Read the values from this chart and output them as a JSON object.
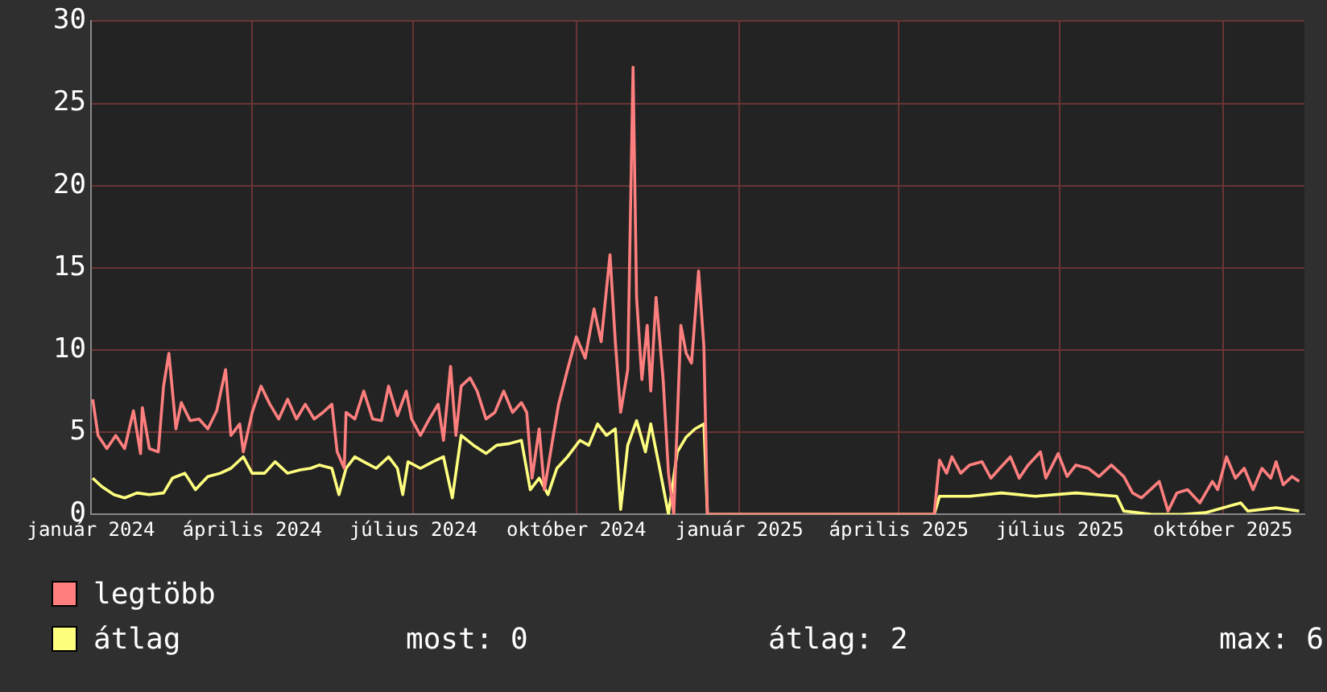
{
  "chart_data": {
    "type": "line",
    "xlim": [
      "2024-01-01",
      "2025-11-16"
    ],
    "ylim": [
      0,
      30
    ],
    "yticks": [
      0,
      5,
      10,
      15,
      20,
      25,
      30
    ],
    "xticks": [
      {
        "value": "2024-01-01",
        "label": "január 2024"
      },
      {
        "value": "2024-04-01",
        "label": "április 2024"
      },
      {
        "value": "2024-07-01",
        "label": "július 2024"
      },
      {
        "value": "2024-10-01",
        "label": "október 2024"
      },
      {
        "value": "2025-01-01",
        "label": "január 2025"
      },
      {
        "value": "2025-04-01",
        "label": "április 2025"
      },
      {
        "value": "2025-07-01",
        "label": "július 2025"
      },
      {
        "value": "2025-10-01",
        "label": "október 2025"
      }
    ],
    "grid": true,
    "legend": "bottom",
    "marker": "none",
    "line_style": "solid",
    "annotations": [
      "most: 0",
      "átlag: 2",
      "max: 6"
    ],
    "series": [
      {
        "name": "legtöbb",
        "color": "#ff7f7f",
        "x": [
          "2024-01-02",
          "2024-01-05",
          "2024-01-10",
          "2024-01-15",
          "2024-01-20",
          "2024-01-25",
          "2024-01-29",
          "2024-01-30",
          "2024-02-03",
          "2024-02-08",
          "2024-02-11",
          "2024-02-14",
          "2024-02-18",
          "2024-02-21",
          "2024-02-26",
          "2024-03-02",
          "2024-03-07",
          "2024-03-12",
          "2024-03-17",
          "2024-03-20",
          "2024-03-25",
          "2024-03-27",
          "2024-04-01",
          "2024-04-06",
          "2024-04-11",
          "2024-04-16",
          "2024-04-21",
          "2024-04-26",
          "2024-05-01",
          "2024-05-06",
          "2024-05-11",
          "2024-05-16",
          "2024-05-19",
          "2024-05-23",
          "2024-05-24",
          "2024-05-29",
          "2024-06-03",
          "2024-06-08",
          "2024-06-13",
          "2024-06-17",
          "2024-06-22",
          "2024-06-27",
          "2024-06-30",
          "2024-07-05",
          "2024-07-10",
          "2024-07-15",
          "2024-07-18",
          "2024-07-22",
          "2024-07-25",
          "2024-07-28",
          "2024-08-02",
          "2024-08-06",
          "2024-08-11",
          "2024-08-16",
          "2024-08-21",
          "2024-08-26",
          "2024-08-31",
          "2024-09-03",
          "2024-09-06",
          "2024-09-10",
          "2024-09-13",
          "2024-09-18",
          "2024-09-21",
          "2024-09-26",
          "2024-10-01",
          "2024-10-06",
          "2024-10-11",
          "2024-10-15",
          "2024-10-20",
          "2024-10-23",
          "2024-10-26",
          "2024-10-30",
          "2024-11-02",
          "2024-11-04",
          "2024-11-07",
          "2024-11-10",
          "2024-11-12",
          "2024-11-15",
          "2024-11-19",
          "2024-11-22",
          "2024-11-25",
          "2024-11-29",
          "2024-12-02",
          "2024-12-05",
          "2024-12-09",
          "2024-12-12",
          "2024-12-14",
          "2025-04-21",
          "2025-04-24",
          "2025-04-28",
          "2025-05-01",
          "2025-05-06",
          "2025-05-11",
          "2025-05-18",
          "2025-05-23",
          "2025-05-28",
          "2025-06-03",
          "2025-06-08",
          "2025-06-13",
          "2025-06-20",
          "2025-06-23",
          "2025-06-30",
          "2025-07-05",
          "2025-07-10",
          "2025-07-17",
          "2025-07-23",
          "2025-07-30",
          "2025-08-06",
          "2025-08-11",
          "2025-08-16",
          "2025-08-21",
          "2025-08-26",
          "2025-08-31",
          "2025-09-05",
          "2025-09-11",
          "2025-09-18",
          "2025-09-25",
          "2025-09-28",
          "2025-10-03",
          "2025-10-08",
          "2025-10-13",
          "2025-10-18",
          "2025-10-23",
          "2025-10-28",
          "2025-10-31",
          "2025-11-04",
          "2025-11-09",
          "2025-11-13"
        ],
        "values": [
          7.0,
          4.8,
          4.0,
          4.8,
          4.0,
          6.3,
          3.7,
          6.5,
          4.0,
          3.8,
          7.8,
          9.8,
          5.2,
          6.8,
          5.7,
          5.8,
          5.2,
          6.3,
          8.8,
          4.8,
          5.5,
          3.8,
          6.2,
          7.8,
          6.7,
          5.8,
          7.0,
          5.8,
          6.7,
          5.8,
          6.2,
          6.7,
          3.8,
          2.8,
          6.2,
          5.8,
          7.5,
          5.8,
          5.7,
          7.8,
          6.0,
          7.5,
          5.8,
          4.8,
          5.8,
          6.7,
          4.5,
          9.0,
          4.8,
          7.8,
          8.3,
          7.5,
          5.8,
          6.2,
          7.5,
          6.2,
          6.8,
          6.2,
          2.2,
          5.2,
          1.5,
          4.8,
          6.7,
          8.8,
          10.8,
          9.5,
          12.5,
          10.5,
          15.8,
          10.5,
          6.2,
          8.8,
          27.2,
          13.2,
          8.2,
          11.5,
          7.5,
          13.2,
          8.2,
          2.5,
          0,
          11.5,
          9.8,
          9.2,
          14.8,
          10.2,
          0,
          0,
          3.3,
          2.5,
          3.5,
          2.5,
          3.0,
          3.2,
          2.2,
          2.8,
          3.5,
          2.2,
          3.0,
          3.8,
          2.2,
          3.7,
          2.3,
          3.0,
          2.8,
          2.3,
          3.0,
          2.3,
          1.3,
          1.0,
          1.5,
          2.0,
          0.2,
          1.3,
          1.5,
          0.7,
          2.0,
          1.5,
          3.5,
          2.2,
          2.8,
          1.5,
          2.8,
          2.2,
          3.2,
          1.8,
          2.3,
          2.0
        ]
      },
      {
        "name": "átlag",
        "color": "#ffff7f",
        "x": [
          "2024-01-02",
          "2024-01-07",
          "2024-01-14",
          "2024-01-20",
          "2024-01-27",
          "2024-02-03",
          "2024-02-11",
          "2024-02-16",
          "2024-02-23",
          "2024-02-29",
          "2024-03-07",
          "2024-03-14",
          "2024-03-20",
          "2024-03-27",
          "2024-04-01",
          "2024-04-08",
          "2024-04-14",
          "2024-04-21",
          "2024-04-28",
          "2024-05-04",
          "2024-05-09",
          "2024-05-16",
          "2024-05-20",
          "2024-05-24",
          "2024-05-29",
          "2024-06-03",
          "2024-06-10",
          "2024-06-17",
          "2024-06-22",
          "2024-06-25",
          "2024-06-28",
          "2024-07-05",
          "2024-07-12",
          "2024-07-18",
          "2024-07-23",
          "2024-07-28",
          "2024-08-04",
          "2024-08-11",
          "2024-08-17",
          "2024-08-24",
          "2024-08-31",
          "2024-09-05",
          "2024-09-10",
          "2024-09-15",
          "2024-09-20",
          "2024-09-26",
          "2024-10-03",
          "2024-10-08",
          "2024-10-13",
          "2024-10-18",
          "2024-10-23",
          "2024-10-26",
          "2024-10-30",
          "2024-11-04",
          "2024-11-09",
          "2024-11-12",
          "2024-11-17",
          "2024-11-22",
          "2024-11-27",
          "2024-12-02",
          "2024-12-07",
          "2024-12-12",
          "2024-12-14",
          "2025-04-21",
          "2025-04-24",
          "2025-05-11",
          "2025-05-29",
          "2025-06-17",
          "2025-07-10",
          "2025-08-02",
          "2025-08-06",
          "2025-08-22",
          "2025-09-08",
          "2025-09-21",
          "2025-10-11",
          "2025-10-15",
          "2025-10-31",
          "2025-11-13"
        ],
        "values": [
          2.2,
          1.7,
          1.2,
          1.0,
          1.3,
          1.2,
          1.3,
          2.2,
          2.5,
          1.5,
          2.3,
          2.5,
          2.8,
          3.5,
          2.5,
          2.5,
          3.2,
          2.5,
          2.7,
          2.8,
          3.0,
          2.8,
          1.2,
          2.8,
          3.5,
          3.2,
          2.8,
          3.5,
          2.8,
          1.2,
          3.2,
          2.8,
          3.2,
          3.5,
          1.0,
          4.8,
          4.2,
          3.7,
          4.2,
          4.3,
          4.5,
          1.5,
          2.2,
          1.2,
          2.8,
          3.5,
          4.5,
          4.2,
          5.5,
          4.8,
          5.2,
          0.3,
          4.2,
          5.7,
          3.8,
          5.5,
          2.8,
          0,
          3.8,
          4.7,
          5.2,
          5.5,
          0,
          0,
          1.1,
          1.1,
          1.3,
          1.1,
          1.3,
          1.1,
          0.2,
          0,
          0,
          0.1,
          0.7,
          0.2,
          0.4,
          0.2
        ]
      }
    ]
  }
}
